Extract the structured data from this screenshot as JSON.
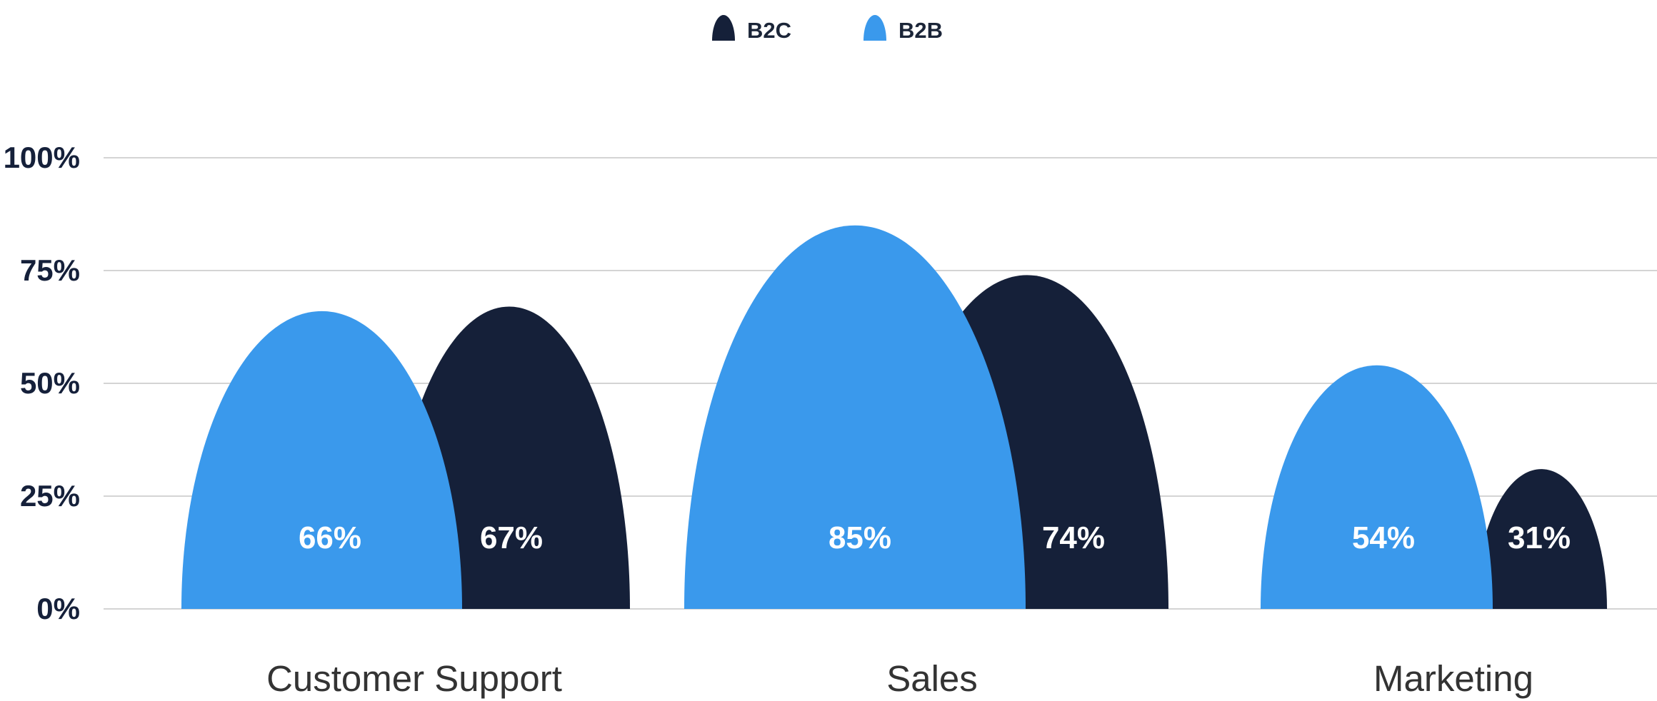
{
  "chart_data": {
    "type": "bar",
    "categories": [
      "Customer Support",
      "Sales",
      "Marketing"
    ],
    "series": [
      {
        "name": "B2C",
        "values": [
          67,
          74,
          31
        ],
        "color": "#152039"
      },
      {
        "name": "B2B",
        "values": [
          66,
          85,
          54
        ],
        "color": "#3a99ec"
      }
    ],
    "data_labels": {
      "B2C": [
        "67%",
        "74%",
        "31%"
      ],
      "B2B": [
        "66%",
        "85%",
        "54%"
      ]
    },
    "yticks": [
      "0%",
      "25%",
      "50%",
      "75%",
      "100%"
    ],
    "ylim": [
      0,
      100
    ],
    "grid": true,
    "legend_position": "top-center",
    "bar_shape": "rounded-arch"
  }
}
